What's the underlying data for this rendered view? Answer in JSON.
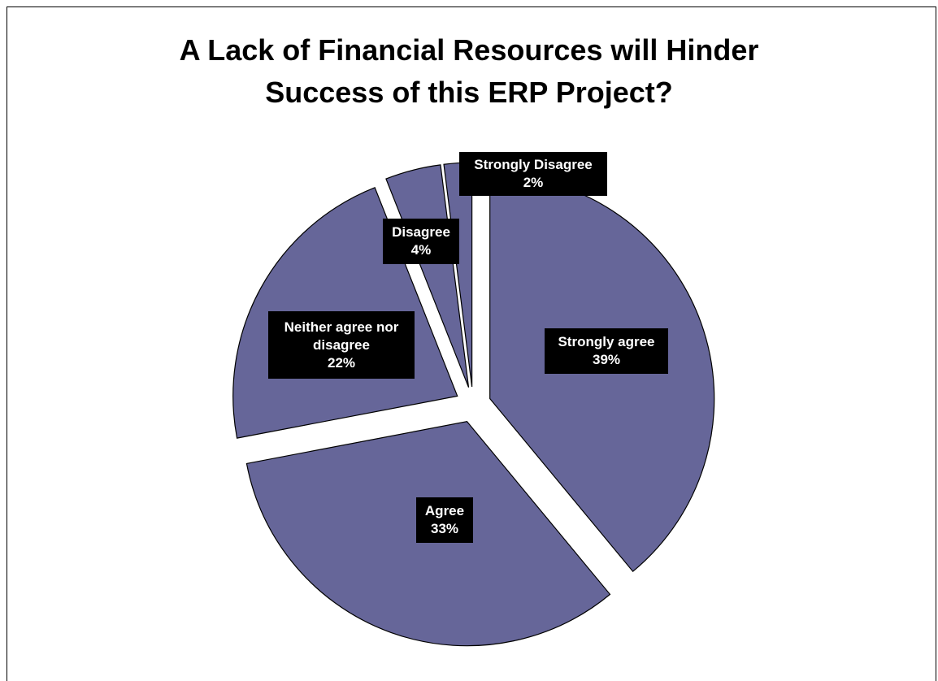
{
  "chart_data": {
    "type": "pie",
    "title": "A Lack of Financial Resources will Hinder Success of this ERP Project?",
    "title_lines": [
      "A Lack of Financial Resources will Hinder",
      "Success of this ERP Project?"
    ],
    "slices": [
      {
        "name": "Strongly agree",
        "label_lines": [
          "Strongly agree"
        ],
        "percent_label": "39%",
        "value": 39
      },
      {
        "name": "Agree",
        "label_lines": [
          "Agree"
        ],
        "percent_label": "33%",
        "value": 33
      },
      {
        "name": "Neither agree nor disagree",
        "label_lines": [
          "Neither agree nor",
          "disagree"
        ],
        "percent_label": "22%",
        "value": 22
      },
      {
        "name": "Disagree",
        "label_lines": [
          "Disagree"
        ],
        "percent_label": "4%",
        "value": 4
      },
      {
        "name": "Strongly Disagree",
        "label_lines": [
          "Strongly Disagree"
        ],
        "percent_label": "2%",
        "value": 2
      }
    ],
    "colors": {
      "slice_fill": "#666699",
      "slice_stroke": "#000000",
      "label_bg": "#000000",
      "label_text": "#ffffff"
    },
    "exploded": true,
    "legend": "none"
  }
}
